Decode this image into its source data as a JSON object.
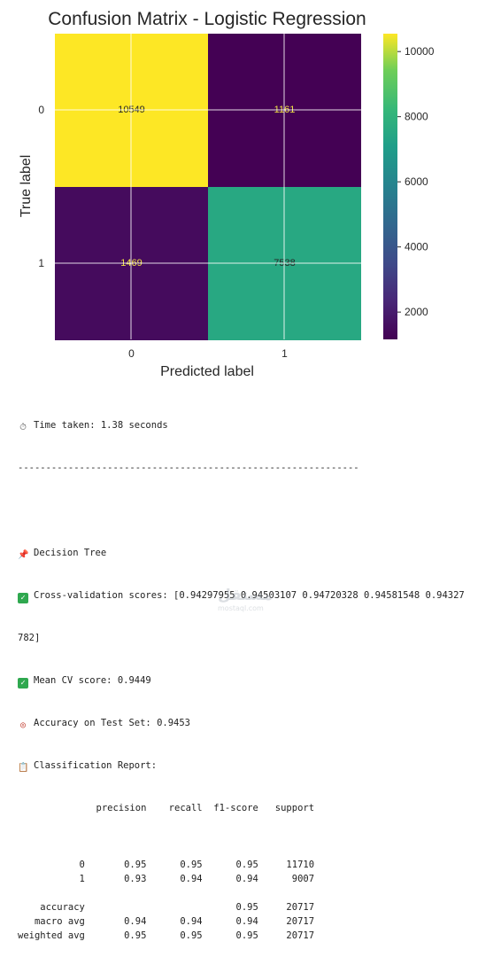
{
  "chart_data": {
    "type": "heatmap",
    "title": "Confusion Matrix - Logistic Regression",
    "xlabel": "Predicted label",
    "ylabel": "True label",
    "x_tick_labels": [
      "0",
      "1"
    ],
    "y_tick_labels": [
      "0",
      "1"
    ],
    "matrix": [
      [
        10549,
        1161
      ],
      [
        1469,
        7538
      ]
    ],
    "colormap": "viridis",
    "colorbar": {
      "ticks": [
        2000,
        4000,
        6000,
        8000,
        10000
      ],
      "range": [
        1161,
        10549
      ]
    },
    "grid": true
  },
  "console": {
    "time_line": "Time taken: 1.38 seconds",
    "separator": "-------------------------------------------------------------",
    "model_name": "Decision Tree",
    "cv_scores_line1": "Cross-validation scores: [0.94297955 0.94503107 0.94720328 0.94581548 0.94327",
    "cv_scores_line2": "782]",
    "mean_cv": "Mean CV score: 0.9449",
    "accuracy": "Accuracy on Test Set: 0.9453",
    "report_title": "Classification Report:",
    "report_header": "              precision    recall  f1-score   support",
    "report_rows": [
      "",
      "           0       0.95      0.95      0.95     11710",
      "           1       0.93      0.94      0.94      9007",
      "",
      "    accuracy                           0.95     20717",
      "   macro avg       0.94      0.94      0.94     20717",
      "weighted avg       0.95      0.95      0.95     20717"
    ]
  },
  "icons": [
    "stopwatch-icon",
    "pin-icon",
    "check-icon",
    "check-icon",
    "target-icon",
    "clipboard-icon"
  ],
  "watermark": {
    "text": "مستقل",
    "sub": "mostaql.com"
  }
}
